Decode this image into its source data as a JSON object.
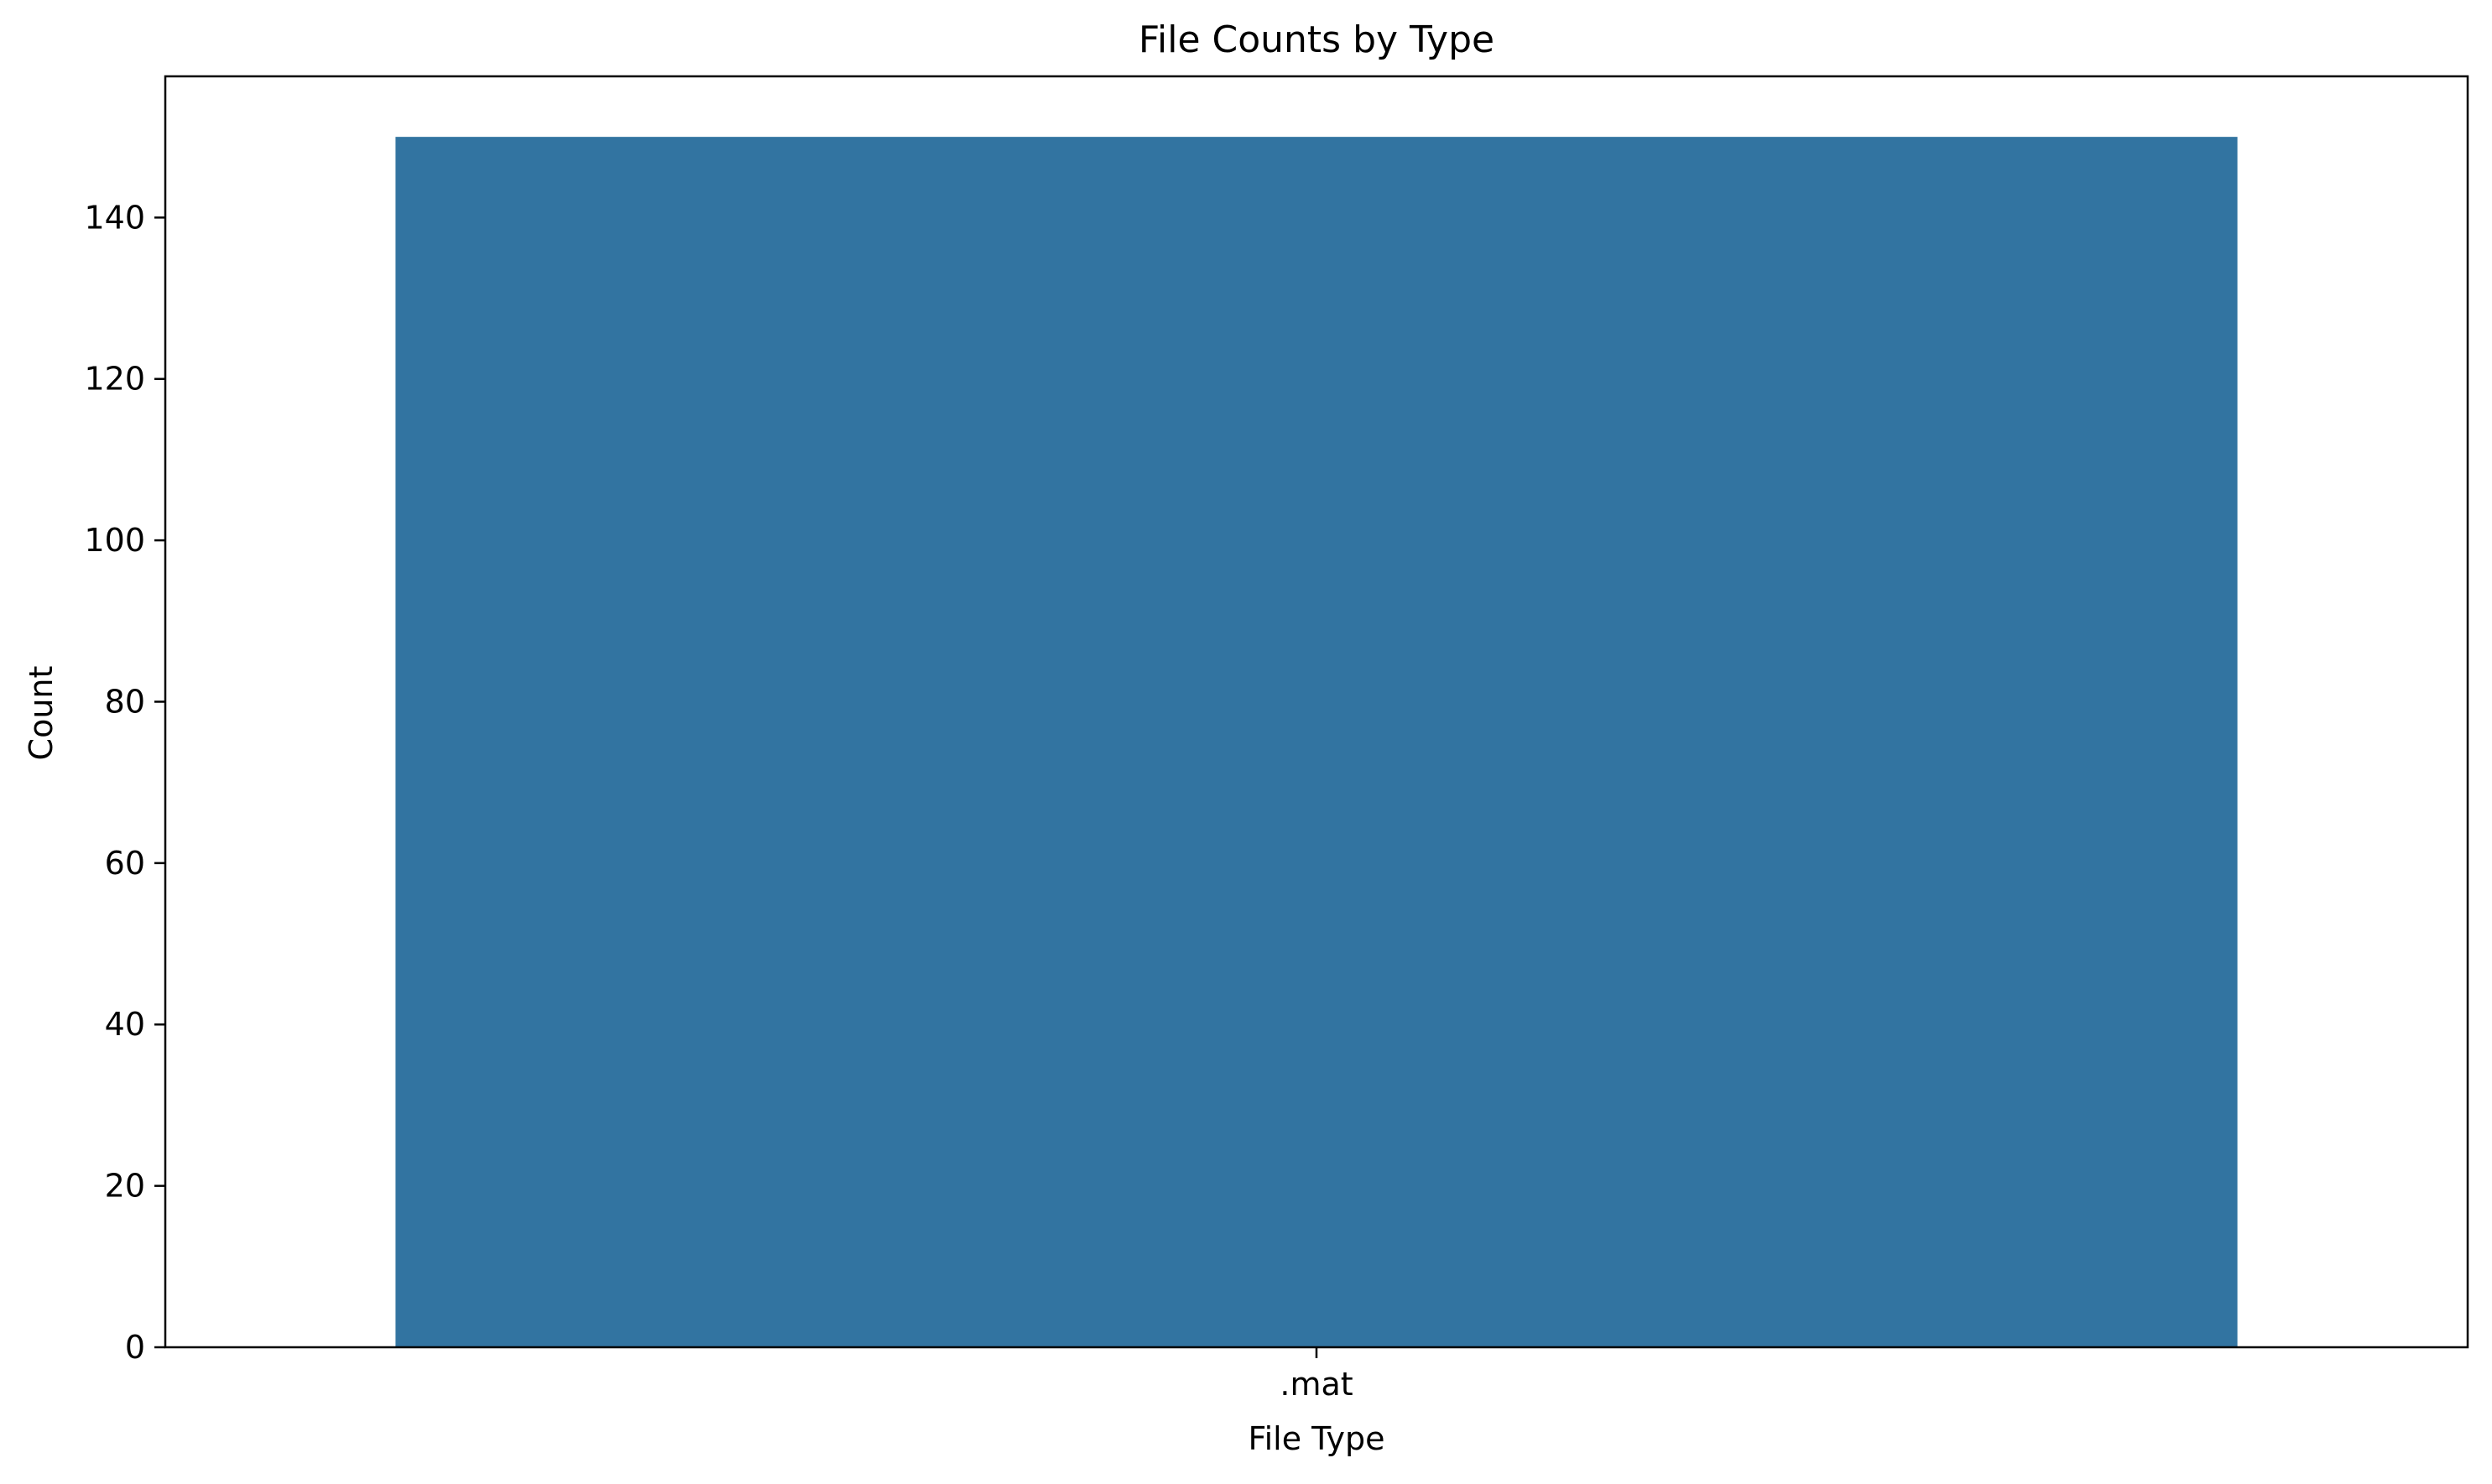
{
  "chart_data": {
    "type": "bar",
    "title": "File Counts by Type",
    "xlabel": "File Type",
    "ylabel": "Count",
    "categories": [
      ".mat"
    ],
    "values": [
      150
    ],
    "ylim": [
      0,
      157.5
    ],
    "yticks": [
      0,
      20,
      40,
      60,
      80,
      100,
      120,
      140
    ],
    "bar_color": "#3274a1",
    "grid": false,
    "legend": "none"
  }
}
